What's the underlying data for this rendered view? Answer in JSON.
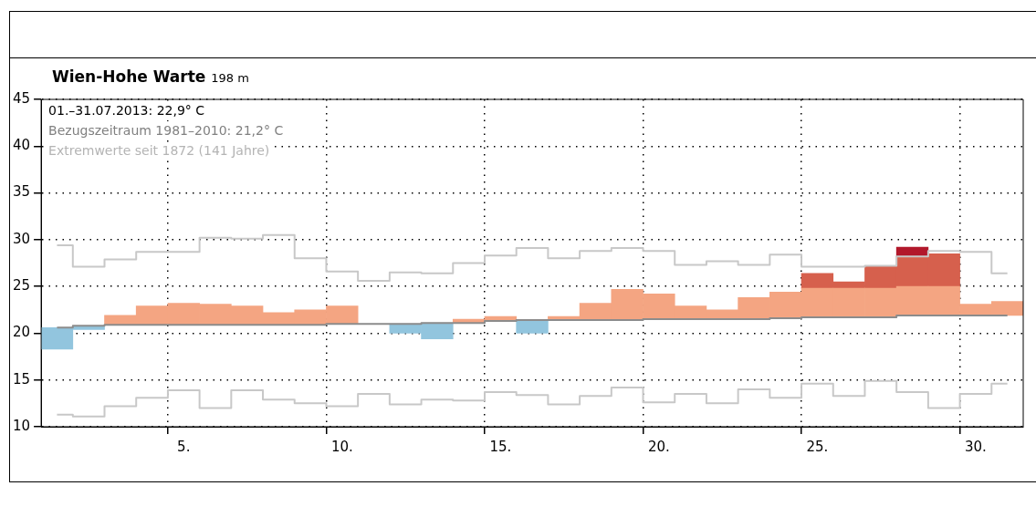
{
  "chart_data": {
    "type": "step",
    "title": "Wien-Hohe Warte",
    "subtitle": "198 m",
    "annotations": [
      "01.–31.07.2013: 22,9° C",
      "Bezugszeitraum 1981–2010: 21,2° C",
      "Extremwerte seit 1872 (141 Jahre)"
    ],
    "categories": [
      null,
      null,
      null,
      null,
      "5.",
      null,
      null,
      null,
      null,
      "10.",
      null,
      null,
      null,
      null,
      "15.",
      null,
      null,
      null,
      null,
      "20.",
      null,
      null,
      null,
      null,
      "25.",
      null,
      null,
      null,
      null,
      "30.",
      null
    ],
    "ylim": [
      10,
      45
    ],
    "yticks": [
      10,
      15,
      20,
      25,
      30,
      35,
      40,
      45
    ],
    "grid": true,
    "series": [
      {
        "type": "bar",
        "color": "#92c5de",
        "base": [
          18.3,
          20.4,
          null,
          null,
          null,
          null,
          null,
          null,
          null,
          null,
          null,
          20.0,
          19.4,
          null,
          null,
          20.0,
          null,
          null,
          null,
          null,
          null,
          null,
          null,
          null,
          null,
          null,
          null,
          null,
          null,
          null,
          null
        ],
        "values": [
          2.3,
          0.4,
          null,
          null,
          null,
          null,
          null,
          null,
          null,
          null,
          null,
          1.0,
          1.7,
          null,
          null,
          1.4,
          null,
          null,
          null,
          null,
          null,
          null,
          null,
          null,
          null,
          null,
          null,
          null,
          null,
          null,
          null
        ]
      },
      {
        "type": "bar",
        "color": "#f4a582",
        "base": [
          null,
          null,
          20.9,
          20.9,
          20.9,
          20.9,
          20.9,
          20.9,
          20.9,
          21.0,
          null,
          null,
          null,
          21.1,
          21.3,
          null,
          21.4,
          21.4,
          21.4,
          21.5,
          21.5,
          21.5,
          21.5,
          21.6,
          21.7,
          21.7,
          21.7,
          21.9,
          21.9,
          21.9,
          21.9
        ],
        "values": [
          null,
          null,
          1.0,
          2.0,
          2.3,
          2.2,
          2.0,
          1.3,
          1.6,
          1.9,
          null,
          null,
          null,
          0.4,
          0.5,
          null,
          0.4,
          1.8,
          3.3,
          2.7,
          1.4,
          1.0,
          2.3,
          2.8,
          3.1,
          3.1,
          3.1,
          3.1,
          3.1,
          1.2,
          1.5
        ]
      },
      {
        "type": "bar",
        "color": "#d6604d",
        "base": [
          null,
          null,
          null,
          null,
          null,
          null,
          null,
          null,
          null,
          null,
          null,
          null,
          null,
          null,
          null,
          null,
          null,
          null,
          null,
          null,
          null,
          null,
          null,
          null,
          24.8,
          24.8,
          24.8,
          25.0,
          25.0,
          null,
          null
        ],
        "values": [
          null,
          null,
          null,
          null,
          null,
          null,
          null,
          null,
          null,
          null,
          null,
          null,
          null,
          null,
          null,
          null,
          null,
          null,
          null,
          null,
          null,
          null,
          null,
          null,
          1.6,
          0.7,
          2.4,
          3.2,
          3.5,
          null,
          null
        ]
      },
      {
        "type": "bar",
        "color": "#b2182b",
        "base": [
          null,
          null,
          null,
          null,
          null,
          null,
          null,
          null,
          null,
          null,
          null,
          null,
          null,
          null,
          null,
          null,
          null,
          null,
          null,
          null,
          null,
          null,
          null,
          null,
          null,
          null,
          null,
          28.2,
          null,
          null,
          null
        ],
        "values": [
          null,
          null,
          null,
          null,
          null,
          null,
          null,
          null,
          null,
          null,
          null,
          null,
          null,
          null,
          null,
          null,
          null,
          null,
          null,
          null,
          null,
          null,
          null,
          null,
          null,
          null,
          null,
          1.0,
          null,
          null,
          null
        ]
      },
      {
        "color": "#c8c8c8",
        "values": [
          29.4,
          27.1,
          27.9,
          28.7,
          28.7,
          30.2,
          30.1,
          30.5,
          28.0,
          26.6,
          25.6,
          26.5,
          26.4,
          27.5,
          28.3,
          29.1,
          28.0,
          28.8,
          29.1,
          28.8,
          27.3,
          27.7,
          27.3,
          28.4,
          27.1,
          27.1,
          27.2,
          28.2,
          28.8,
          28.7,
          26.4
        ]
      },
      {
        "color": "#c8c8c8",
        "values": [
          11.3,
          11.1,
          12.2,
          13.1,
          13.9,
          12.0,
          13.9,
          12.9,
          12.5,
          12.2,
          13.5,
          12.4,
          12.9,
          12.8,
          13.7,
          13.4,
          12.4,
          13.3,
          14.2,
          12.6,
          13.5,
          12.5,
          14.0,
          13.1,
          14.6,
          13.3,
          14.9,
          13.7,
          12.0,
          13.5,
          14.6
        ]
      },
      {
        "color": "#8c8c8c",
        "values": [
          20.6,
          20.8,
          20.9,
          20.9,
          20.9,
          20.9,
          20.9,
          20.9,
          20.9,
          21.0,
          21.0,
          21.0,
          21.1,
          21.1,
          21.3,
          21.4,
          21.4,
          21.4,
          21.4,
          21.5,
          21.5,
          21.5,
          21.5,
          21.6,
          21.7,
          21.7,
          21.7,
          21.9,
          21.9,
          21.9,
          21.9
        ]
      }
    ]
  }
}
